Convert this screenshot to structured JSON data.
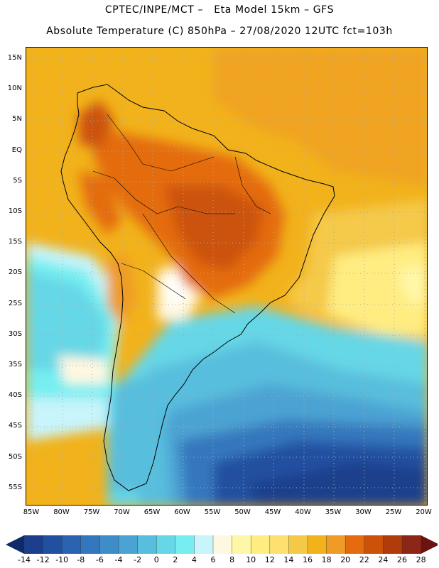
{
  "header": {
    "line1": "CPTEC/INPE/MCT –   Eta Model 15km – GFS",
    "line2": "Absolute Temperature (C) 850hPa – 27/08/2020 12UTC fct=103h"
  },
  "map": {
    "lon_labels": [
      "85W",
      "80W",
      "75W",
      "70W",
      "65W",
      "60W",
      "55W",
      "50W",
      "45W",
      "40W",
      "35W",
      "30W",
      "25W",
      "20W"
    ],
    "lat_labels": [
      "15N",
      "10N",
      "5N",
      "EQ",
      "5S",
      "10S",
      "15S",
      "20S",
      "25S",
      "30S",
      "35S",
      "40S",
      "45S",
      "50S",
      "55S"
    ]
  },
  "colorbar": {
    "labels": [
      "-14",
      "-12",
      "-10",
      "-8",
      "-6",
      "-4",
      "-2",
      "0",
      "2",
      "4",
      "6",
      "8",
      "10",
      "12",
      "14",
      "16",
      "18",
      "20",
      "22",
      "24",
      "26",
      "28"
    ],
    "colors": [
      "#1c3f8c",
      "#2250a0",
      "#2b63b0",
      "#3577bd",
      "#3e8cc8",
      "#4ba3d3",
      "#58bedd",
      "#66d7e6",
      "#76eef1",
      "#c8f4fb",
      "#fff8e1",
      "#fff7a8",
      "#ffed82",
      "#fee071",
      "#f5c948",
      "#f2b21b",
      "#ef9b25",
      "#e46c0e",
      "#cc520a",
      "#b13b0a",
      "#8c2717"
    ],
    "low_color": "#0e2a6a",
    "high_color": "#6a1310"
  }
}
